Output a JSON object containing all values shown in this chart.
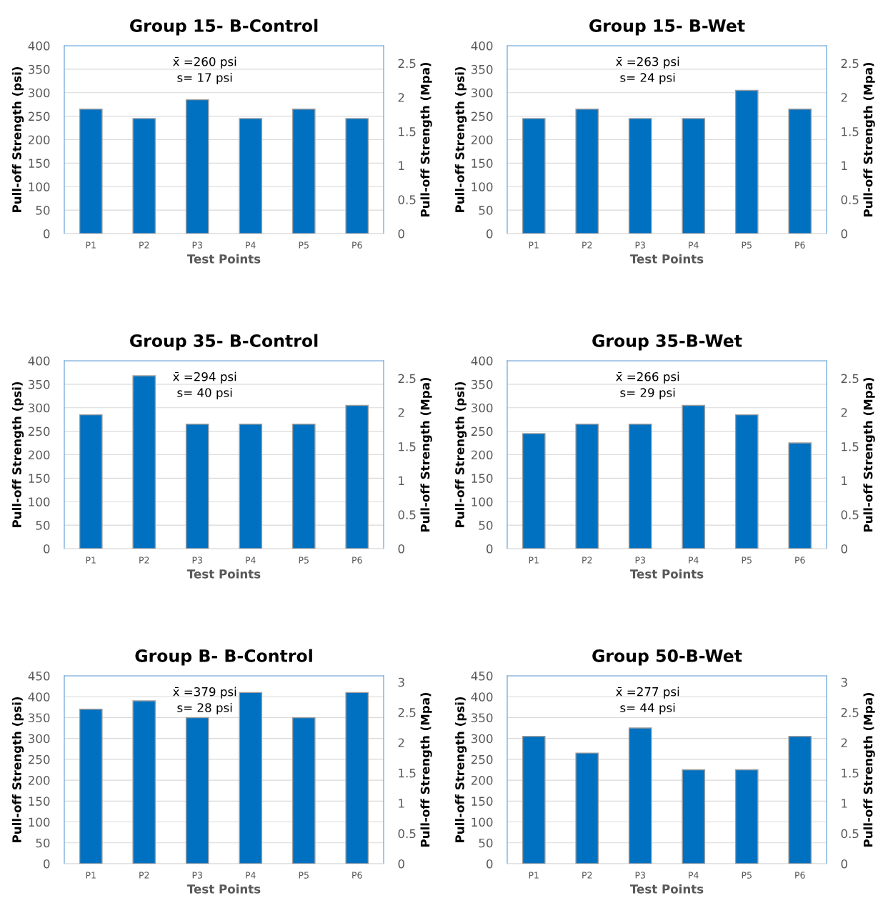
{
  "chart_data": [
    {
      "type": "bar",
      "title": "Group 15- B-Control",
      "xlabel": "Test Points",
      "ylabel": "Pull-off Strength (psi)",
      "y2label": "Pull-off Strength (Mpa)",
      "categories": [
        "P1",
        "P2",
        "P3",
        "P4",
        "P5",
        "P6"
      ],
      "values": [
        265,
        245,
        285,
        245,
        265,
        245
      ],
      "color": "#0070c0",
      "ylim": [
        0,
        400
      ],
      "yticks": [
        0,
        50,
        100,
        150,
        200,
        250,
        300,
        350,
        400
      ],
      "y2lim": [
        0,
        2.758
      ],
      "y2ticks": [
        0,
        0.5,
        1,
        1.5,
        2,
        2.5
      ],
      "grid": "y",
      "annotations": [
        "x̄ =260 psi",
        "s= 17 psi"
      ]
    },
    {
      "type": "bar",
      "title": "Group 15- B-Wet",
      "xlabel": "Test Points",
      "ylabel": "Pull-off Strength (psi)",
      "y2label": "Pull-off Strength (Mpa)",
      "categories": [
        "P1",
        "P2",
        "P3",
        "P4",
        "P5",
        "P6"
      ],
      "values": [
        245,
        265,
        245,
        245,
        305,
        265
      ],
      "color": "#0070c0",
      "ylim": [
        0,
        400
      ],
      "yticks": [
        0,
        50,
        100,
        150,
        200,
        250,
        300,
        350,
        400
      ],
      "y2lim": [
        0,
        2.758
      ],
      "y2ticks": [
        0,
        0.5,
        1,
        1.5,
        2,
        2.5
      ],
      "grid": "y",
      "annotations": [
        "x̄ =263 psi",
        "s= 24 psi"
      ]
    },
    {
      "type": "bar",
      "title": "Group 35- B-Control",
      "xlabel": "Test Points",
      "ylabel": "Pull-off Strength (psi)",
      "y2label": "Pull-off Strength (Mpa)",
      "categories": [
        "P1",
        "P2",
        "P3",
        "P4",
        "P5",
        "P6"
      ],
      "values": [
        285,
        368,
        265,
        265,
        265,
        305
      ],
      "color": "#0070c0",
      "ylim": [
        0,
        400
      ],
      "yticks": [
        0,
        50,
        100,
        150,
        200,
        250,
        300,
        350,
        400
      ],
      "y2lim": [
        0,
        2.758
      ],
      "y2ticks": [
        0,
        0.5,
        1,
        1.5,
        2,
        2.5
      ],
      "grid": "y",
      "annotations": [
        "x̄ =294 psi",
        "s= 40 psi"
      ]
    },
    {
      "type": "bar",
      "title": "Group 35-B-Wet",
      "xlabel": "Test Points",
      "ylabel": "Pull-off Strength (psi)",
      "y2label": "Pull-off Strength (Mpa)",
      "categories": [
        "P1",
        "P2",
        "P3",
        "P4",
        "P5",
        "P6"
      ],
      "values": [
        245,
        265,
        265,
        305,
        285,
        225
      ],
      "color": "#0070c0",
      "ylim": [
        0,
        400
      ],
      "yticks": [
        0,
        50,
        100,
        150,
        200,
        250,
        300,
        350,
        400
      ],
      "y2lim": [
        0,
        2.758
      ],
      "y2ticks": [
        0,
        0.5,
        1,
        1.5,
        2,
        2.5
      ],
      "grid": "y",
      "annotations": [
        "x̄ =266 psi",
        "s= 29 psi"
      ]
    },
    {
      "type": "bar",
      "title": "Group B- B-Control",
      "xlabel": "Test Points",
      "ylabel": "Pull-off Strength (psi)",
      "y2label": "Pull-off Strength (Mpa)",
      "categories": [
        "P1",
        "P2",
        "P3",
        "P4",
        "P5",
        "P6"
      ],
      "values": [
        370,
        390,
        350,
        410,
        350,
        410
      ],
      "color": "#0070c0",
      "ylim": [
        0,
        450
      ],
      "yticks": [
        0,
        50,
        100,
        150,
        200,
        250,
        300,
        350,
        400,
        450
      ],
      "y2lim": [
        0,
        3.103
      ],
      "y2ticks": [
        0,
        0.5,
        1,
        1.5,
        2,
        2.5,
        3
      ],
      "grid": "y",
      "annotations": [
        "x̄ =379 psi",
        "s= 28 psi"
      ]
    },
    {
      "type": "bar",
      "title": "Group 50-B-Wet",
      "xlabel": "Test Points",
      "ylabel": "Pull-off Strength (psi)",
      "y2label": "Pull-off Strength (Mpa)",
      "categories": [
        "P1",
        "P2",
        "P3",
        "P4",
        "P5",
        "P6"
      ],
      "values": [
        305,
        265,
        325,
        225,
        225,
        305
      ],
      "color": "#0070c0",
      "ylim": [
        0,
        450
      ],
      "yticks": [
        0,
        50,
        100,
        150,
        200,
        250,
        300,
        350,
        400,
        450
      ],
      "y2lim": [
        0,
        3.103
      ],
      "y2ticks": [
        0,
        0.5,
        1,
        1.5,
        2,
        2.5,
        3
      ],
      "grid": "y",
      "annotations": [
        "x̄ =277 psi",
        "s= 44 psi"
      ]
    }
  ]
}
